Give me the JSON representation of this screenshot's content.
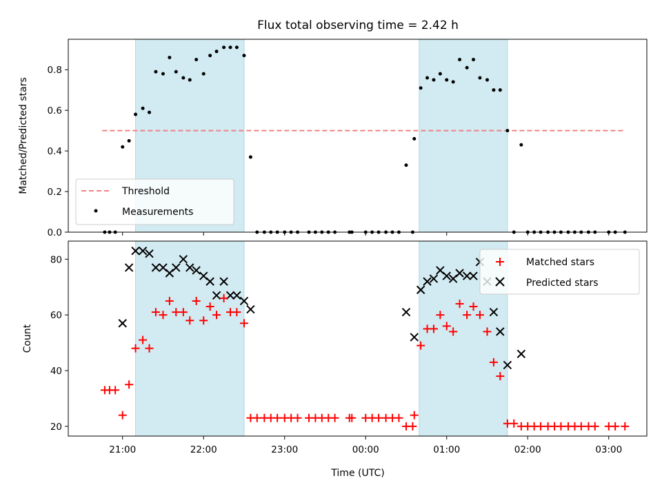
{
  "chart_data": {
    "title": "Flux total observing time = 2.42 h",
    "x_axis": {
      "label": "Time (UTC)",
      "ticks": [
        "21:00",
        "22:00",
        "23:00",
        "00:00",
        "01:00",
        "02:00",
        "03:00"
      ],
      "tick_hours": [
        21,
        22,
        23,
        24,
        25,
        26,
        27
      ],
      "range_hours": [
        20.33,
        27.47
      ]
    },
    "shaded_intervals_hours": [
      [
        21.16,
        22.5
      ],
      [
        24.66,
        25.75
      ]
    ],
    "shade_color": "#add8e6",
    "top": {
      "type": "scatter",
      "ylabel": "Matched/Predicted stars",
      "ylim": [
        0,
        0.95
      ],
      "yticks": [
        "0.0",
        "0.2",
        "0.4",
        "0.6",
        "0.8"
      ],
      "ytick_values": [
        0,
        0.2,
        0.4,
        0.6,
        0.8
      ],
      "threshold": {
        "name": "Threshold",
        "value": 0.5,
        "x_range_hours": [
          20.75,
          27.2
        ],
        "color": "#f08080"
      },
      "legend": [
        "Threshold",
        "Measurements"
      ],
      "legend_position": "lower-left",
      "measurements": [
        [
          20.78,
          0.0
        ],
        [
          20.84,
          0.0
        ],
        [
          20.91,
          0.0
        ],
        [
          21.0,
          0.42
        ],
        [
          21.08,
          0.45
        ],
        [
          21.16,
          0.58
        ],
        [
          21.25,
          0.61
        ],
        [
          21.33,
          0.59
        ],
        [
          21.41,
          0.79
        ],
        [
          21.5,
          0.78
        ],
        [
          21.58,
          0.86
        ],
        [
          21.66,
          0.79
        ],
        [
          21.75,
          0.76
        ],
        [
          21.83,
          0.75
        ],
        [
          21.91,
          0.85
        ],
        [
          22.0,
          0.78
        ],
        [
          22.08,
          0.87
        ],
        [
          22.16,
          0.89
        ],
        [
          22.25,
          0.91
        ],
        [
          22.33,
          0.91
        ],
        [
          22.41,
          0.91
        ],
        [
          22.5,
          0.87
        ],
        [
          22.58,
          0.37
        ],
        [
          22.66,
          0.0
        ],
        [
          22.75,
          0.0
        ],
        [
          22.83,
          0.0
        ],
        [
          22.91,
          0.0
        ],
        [
          23.0,
          0.0
        ],
        [
          23.08,
          0.0
        ],
        [
          23.16,
          0.0
        ],
        [
          23.3,
          0.0
        ],
        [
          23.38,
          0.0
        ],
        [
          23.46,
          0.0
        ],
        [
          23.54,
          0.0
        ],
        [
          23.62,
          0.0
        ],
        [
          23.8,
          0.0
        ],
        [
          23.83,
          0.0
        ],
        [
          24.0,
          0.0
        ],
        [
          24.08,
          0.0
        ],
        [
          24.16,
          0.0
        ],
        [
          24.25,
          0.0
        ],
        [
          24.33,
          0.0
        ],
        [
          24.41,
          0.0
        ],
        [
          24.5,
          0.33
        ],
        [
          24.58,
          0.0
        ],
        [
          24.6,
          0.46
        ],
        [
          24.68,
          0.71
        ],
        [
          24.76,
          0.76
        ],
        [
          24.84,
          0.75
        ],
        [
          24.92,
          0.78
        ],
        [
          25.0,
          0.75
        ],
        [
          25.08,
          0.74
        ],
        [
          25.16,
          0.85
        ],
        [
          25.25,
          0.81
        ],
        [
          25.33,
          0.85
        ],
        [
          25.41,
          0.76
        ],
        [
          25.5,
          0.75
        ],
        [
          25.58,
          0.7
        ],
        [
          25.66,
          0.7
        ],
        [
          25.75,
          0.5
        ],
        [
          25.83,
          0.0
        ],
        [
          25.92,
          0.43
        ],
        [
          26.0,
          0.0
        ],
        [
          26.08,
          0.0
        ],
        [
          26.16,
          0.0
        ],
        [
          26.25,
          0.0
        ],
        [
          26.33,
          0.0
        ],
        [
          26.41,
          0.0
        ],
        [
          26.5,
          0.0
        ],
        [
          26.58,
          0.0
        ],
        [
          26.66,
          0.0
        ],
        [
          26.75,
          0.0
        ],
        [
          26.83,
          0.0
        ],
        [
          27.0,
          0.0
        ],
        [
          27.08,
          0.0
        ],
        [
          27.2,
          0.0
        ]
      ]
    },
    "bottom": {
      "type": "scatter",
      "ylabel": "Count",
      "ylim": [
        16.5,
        86.5
      ],
      "yticks": [
        "20",
        "40",
        "60",
        "80"
      ],
      "ytick_values": [
        20,
        40,
        60,
        80
      ],
      "legend": [
        "Matched stars",
        "Predicted stars"
      ],
      "legend_position": "top-right",
      "series": [
        {
          "name": "Matched stars",
          "marker": "+",
          "color": "#ff0000",
          "points": [
            [
              20.78,
              33
            ],
            [
              20.84,
              33
            ],
            [
              20.91,
              33
            ],
            [
              21.0,
              24
            ],
            [
              21.08,
              35
            ],
            [
              21.16,
              48
            ],
            [
              21.25,
              51
            ],
            [
              21.33,
              48
            ],
            [
              21.41,
              61
            ],
            [
              21.5,
              60
            ],
            [
              21.58,
              65
            ],
            [
              21.66,
              61
            ],
            [
              21.75,
              61
            ],
            [
              21.83,
              58
            ],
            [
              21.91,
              65
            ],
            [
              22.0,
              58
            ],
            [
              22.08,
              63
            ],
            [
              22.16,
              60
            ],
            [
              22.25,
              66
            ],
            [
              22.33,
              61
            ],
            [
              22.41,
              61
            ],
            [
              22.5,
              57
            ],
            [
              22.58,
              23
            ],
            [
              22.66,
              23
            ],
            [
              22.75,
              23
            ],
            [
              22.83,
              23
            ],
            [
              22.91,
              23
            ],
            [
              23.0,
              23
            ],
            [
              23.08,
              23
            ],
            [
              23.16,
              23
            ],
            [
              23.3,
              23
            ],
            [
              23.38,
              23
            ],
            [
              23.46,
              23
            ],
            [
              23.54,
              23
            ],
            [
              23.62,
              23
            ],
            [
              23.8,
              23
            ],
            [
              23.83,
              23
            ],
            [
              24.0,
              23
            ],
            [
              24.08,
              23
            ],
            [
              24.16,
              23
            ],
            [
              24.25,
              23
            ],
            [
              24.33,
              23
            ],
            [
              24.41,
              23
            ],
            [
              24.5,
              20
            ],
            [
              24.58,
              20
            ],
            [
              24.6,
              24
            ],
            [
              24.68,
              49
            ],
            [
              24.76,
              55
            ],
            [
              24.84,
              55
            ],
            [
              24.92,
              60
            ],
            [
              25.0,
              56
            ],
            [
              25.08,
              54
            ],
            [
              25.16,
              64
            ],
            [
              25.25,
              60
            ],
            [
              25.33,
              63
            ],
            [
              25.41,
              60
            ],
            [
              25.5,
              54
            ],
            [
              25.58,
              43
            ],
            [
              25.66,
              38
            ],
            [
              25.75,
              21
            ],
            [
              25.83,
              21
            ],
            [
              25.92,
              20
            ],
            [
              26.0,
              20
            ],
            [
              26.08,
              20
            ],
            [
              26.16,
              20
            ],
            [
              26.25,
              20
            ],
            [
              26.33,
              20
            ],
            [
              26.41,
              20
            ],
            [
              26.5,
              20
            ],
            [
              26.58,
              20
            ],
            [
              26.66,
              20
            ],
            [
              26.75,
              20
            ],
            [
              26.83,
              20
            ],
            [
              27.0,
              20
            ],
            [
              27.08,
              20
            ],
            [
              27.2,
              20
            ]
          ]
        },
        {
          "name": "Predicted stars",
          "marker": "x",
          "color": "#000000",
          "points": [
            [
              21.0,
              57
            ],
            [
              21.08,
              77
            ],
            [
              21.16,
              83
            ],
            [
              21.25,
              83
            ],
            [
              21.33,
              82
            ],
            [
              21.41,
              77
            ],
            [
              21.5,
              77
            ],
            [
              21.58,
              75
            ],
            [
              21.66,
              77
            ],
            [
              21.75,
              80
            ],
            [
              21.83,
              77
            ],
            [
              21.91,
              76
            ],
            [
              22.0,
              74
            ],
            [
              22.08,
              72
            ],
            [
              22.16,
              67
            ],
            [
              22.25,
              72
            ],
            [
              22.33,
              67
            ],
            [
              22.41,
              67
            ],
            [
              22.5,
              65
            ],
            [
              22.58,
              62
            ],
            [
              24.5,
              61
            ],
            [
              24.6,
              52
            ],
            [
              24.68,
              69
            ],
            [
              24.76,
              72
            ],
            [
              24.84,
              73
            ],
            [
              24.92,
              76
            ],
            [
              25.0,
              74
            ],
            [
              25.08,
              73
            ],
            [
              25.16,
              75
            ],
            [
              25.25,
              74
            ],
            [
              25.33,
              74
            ],
            [
              25.41,
              79
            ],
            [
              25.5,
              72
            ],
            [
              25.58,
              61
            ],
            [
              25.66,
              54
            ],
            [
              25.75,
              42
            ],
            [
              25.92,
              46
            ]
          ]
        }
      ]
    }
  }
}
